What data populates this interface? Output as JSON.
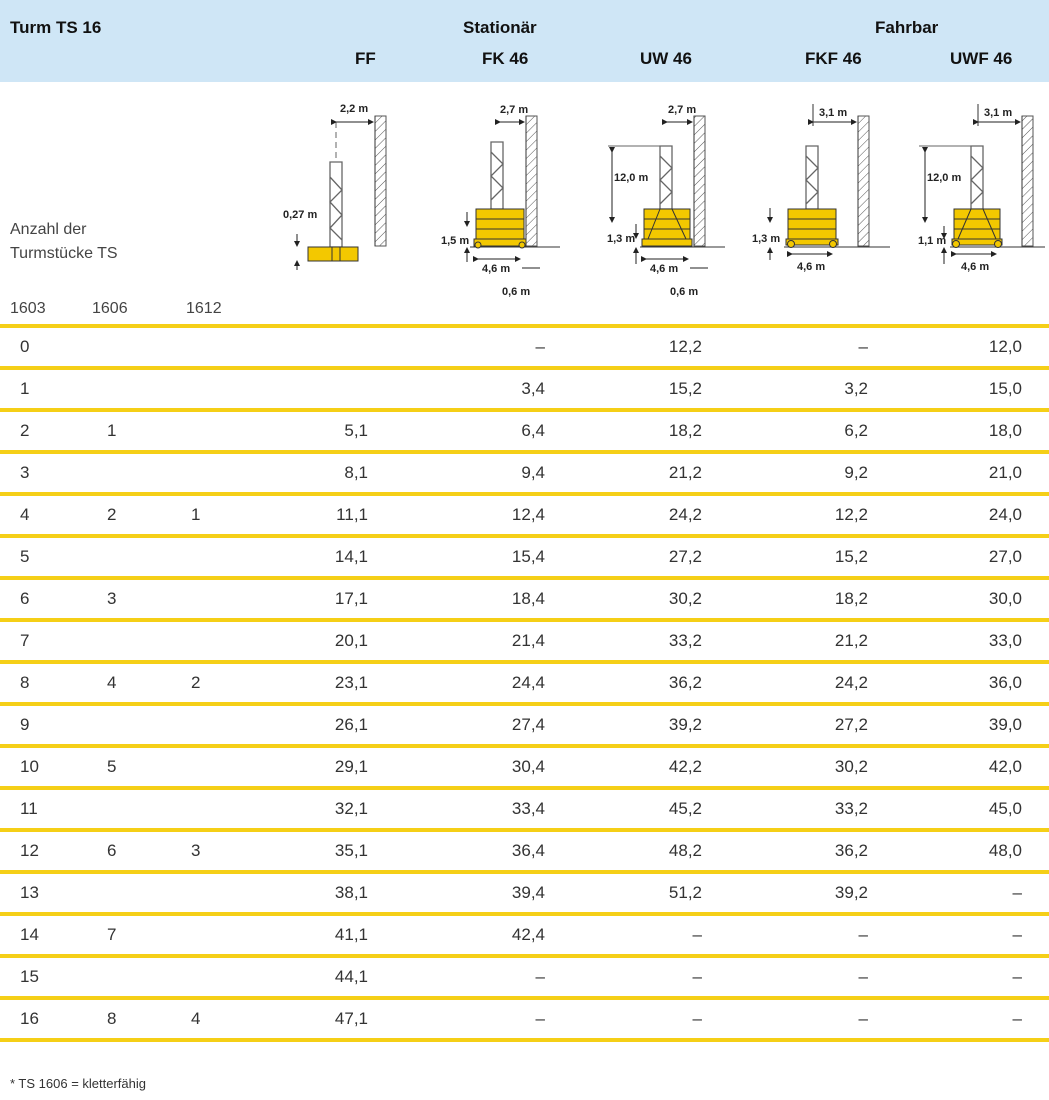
{
  "header": {
    "tower": "Turm TS 16",
    "group_stationary": "Stationär",
    "group_mobile": "Fahrbar",
    "columns": [
      "FF",
      "FK 46",
      "UW 46",
      "FKF 46",
      "UWF 46"
    ]
  },
  "side": {
    "label_line1": "Anzahl der",
    "label_line2": "Turmstücke TS",
    "ts_types": [
      "1603",
      "1606",
      "1612"
    ]
  },
  "diagrams": {
    "ff": {
      "top": "2,2 m",
      "left": "0,27 m"
    },
    "fk46": {
      "top": "2,7 m",
      "left": "1,5 m",
      "bottom": "4,6 m",
      "offset": "0,6 m"
    },
    "uw46": {
      "top": "2,7 m",
      "height": "12,0 m",
      "left": "1,3 m",
      "bottom": "4,6 m",
      "offset": "0,6 m"
    },
    "fkf46": {
      "top": "3,1 m",
      "left": "1,3 m",
      "bottom": "4,6 m"
    },
    "uwf46": {
      "top": "3,1 m",
      "height": "12,0 m",
      "left": "1,1 m",
      "bottom": "4,6 m"
    }
  },
  "rows": [
    [
      "0",
      "",
      "",
      "",
      "–",
      "12,2",
      "–",
      "12,0"
    ],
    [
      "1",
      "",
      "",
      "",
      "3,4",
      "15,2",
      "3,2",
      "15,0"
    ],
    [
      "2",
      "1",
      "",
      "5,1",
      "6,4",
      "18,2",
      "6,2",
      "18,0"
    ],
    [
      "3",
      "",
      "",
      "8,1",
      "9,4",
      "21,2",
      "9,2",
      "21,0"
    ],
    [
      "4",
      "2",
      "1",
      "11,1",
      "12,4",
      "24,2",
      "12,2",
      "24,0"
    ],
    [
      "5",
      "",
      "",
      "14,1",
      "15,4",
      "27,2",
      "15,2",
      "27,0"
    ],
    [
      "6",
      "3",
      "",
      "17,1",
      "18,4",
      "30,2",
      "18,2",
      "30,0"
    ],
    [
      "7",
      "",
      "",
      "20,1",
      "21,4",
      "33,2",
      "21,2",
      "33,0"
    ],
    [
      "8",
      "4",
      "2",
      "23,1",
      "24,4",
      "36,2",
      "24,2",
      "36,0"
    ],
    [
      "9",
      "",
      "",
      "26,1",
      "27,4",
      "39,2",
      "27,2",
      "39,0"
    ],
    [
      "10",
      "5",
      "",
      "29,1",
      "30,4",
      "42,2",
      "30,2",
      "42,0"
    ],
    [
      "11",
      "",
      "",
      "32,1",
      "33,4",
      "45,2",
      "33,2",
      "45,0"
    ],
    [
      "12",
      "6",
      "3",
      "35,1",
      "36,4",
      "48,2",
      "36,2",
      "48,0"
    ],
    [
      "13",
      "",
      "",
      "38,1",
      "39,4",
      "51,2",
      "39,2",
      "–"
    ],
    [
      "14",
      "7",
      "",
      "41,1",
      "42,4",
      "–",
      "–",
      "–"
    ],
    [
      "15",
      "",
      "",
      "44,1",
      "–",
      "–",
      "–",
      "–"
    ],
    [
      "16",
      "8",
      "4",
      "47,1",
      "–",
      "–",
      "–",
      "–"
    ]
  ],
  "footnote": "* TS 1606 = kletterfähig",
  "colors": {
    "header_bg": "#cfe6f6",
    "rule": "#f5cf17",
    "crane_yellow": "#f3c800"
  }
}
